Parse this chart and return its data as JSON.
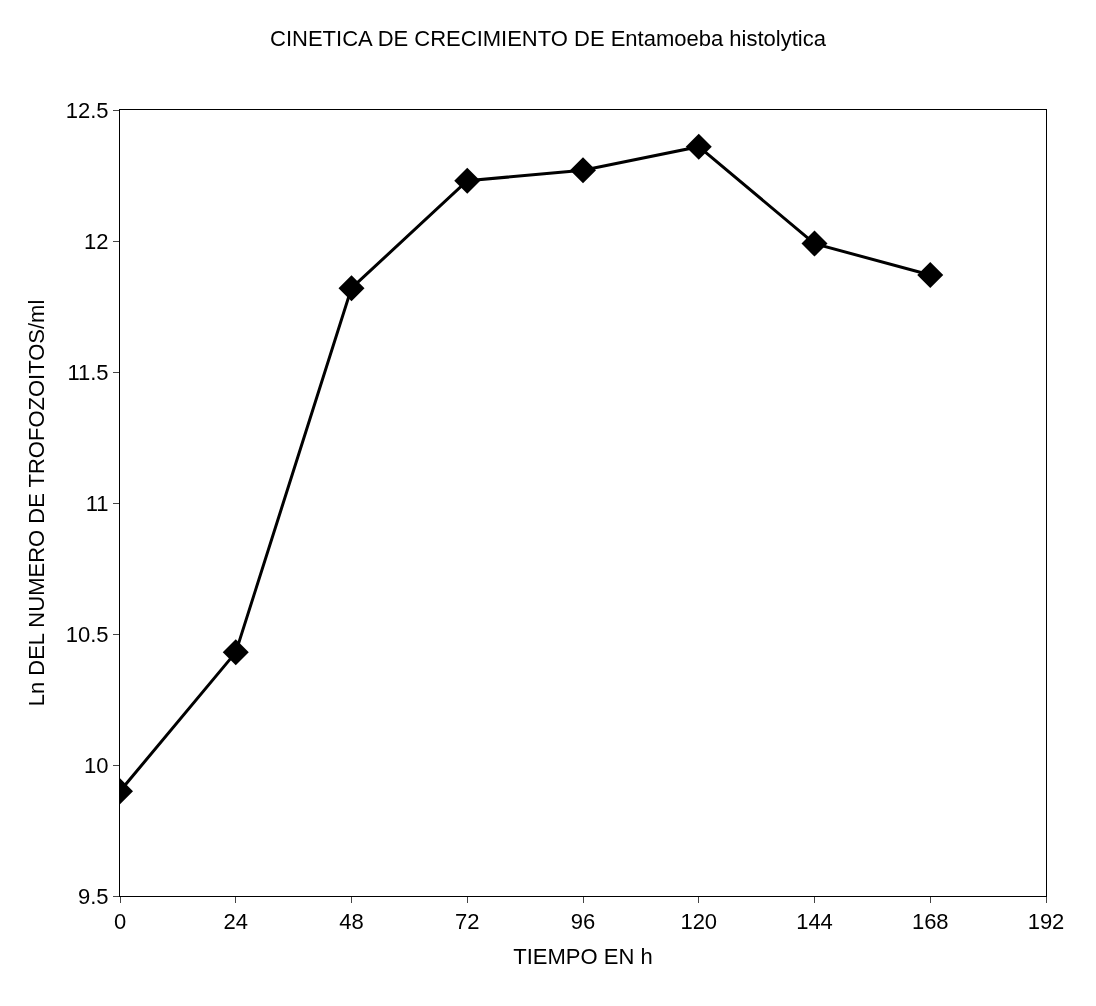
{
  "chart_data": {
    "type": "line",
    "title": "CINETICA DE CRECIMIENTO DE Entamoeba histolytica",
    "xlabel": "TIEMPO EN h",
    "ylabel": "Ln DEL NUMERO DE TROFOZOITOS/ml",
    "x": [
      0,
      24,
      48,
      72,
      96,
      120,
      144,
      168
    ],
    "series": [
      {
        "color": "#000000",
        "values": [
          9.9,
          10.43,
          11.82,
          12.23,
          12.27,
          12.36,
          11.99,
          11.87
        ]
      }
    ],
    "xlim": [
      0,
      192
    ],
    "xticks": [
      0,
      24,
      48,
      72,
      96,
      120,
      144,
      168,
      192
    ],
    "ylim": [
      9.5,
      12.5
    ],
    "yticks": [
      9.5,
      10,
      10.5,
      11,
      11.5,
      12,
      12.5
    ],
    "marker": "diamond",
    "line_style": "solid"
  }
}
